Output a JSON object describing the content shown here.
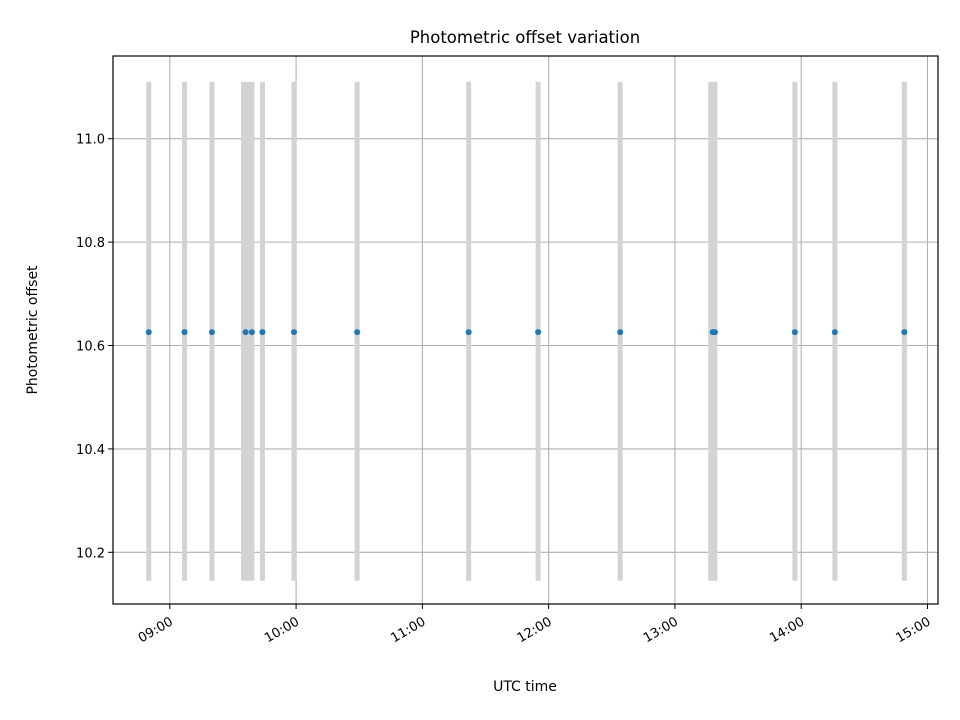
{
  "chart_data": {
    "type": "scatter",
    "title": "Photometric offset variation",
    "xlabel": "UTC time",
    "ylabel": "Photometric offset",
    "x_axis_type": "time",
    "xlim": [
      "08:33",
      "15:05"
    ],
    "ylim": [
      10.1,
      11.16
    ],
    "x_ticks": [
      "09:00",
      "10:00",
      "11:00",
      "12:00",
      "13:00",
      "14:00",
      "15:00"
    ],
    "y_ticks": [
      10.2,
      10.4,
      10.6,
      10.8,
      11.0
    ],
    "y_tick_labels": [
      "10.2",
      "10.4",
      "10.6",
      "10.8",
      "11.0"
    ],
    "grid": true,
    "x_tick_rotation_deg": 30,
    "series": [
      {
        "color": "#1f77b4",
        "x": [
          "08:50",
          "09:07",
          "09:20",
          "09:36",
          "09:39",
          "09:44",
          "09:59",
          "10:29",
          "11:22",
          "11:55",
          "12:34",
          "13:18",
          "13:19",
          "13:57",
          "14:16",
          "14:49"
        ],
        "y": [
          10.626,
          10.626,
          10.626,
          10.626,
          10.626,
          10.626,
          10.626,
          10.626,
          10.626,
          10.626,
          10.626,
          10.626,
          10.626,
          10.626,
          10.626,
          10.626
        ]
      }
    ],
    "bands": {
      "color": "#d3d3d3",
      "y_range": [
        10.145,
        11.11
      ],
      "x": [
        "08:50",
        "09:07",
        "09:20",
        "09:35",
        "09:37",
        "09:39",
        "09:44",
        "09:59",
        "10:29",
        "11:22",
        "11:55",
        "12:34",
        "13:17",
        "13:19",
        "13:57",
        "14:16",
        "14:49"
      ]
    }
  }
}
